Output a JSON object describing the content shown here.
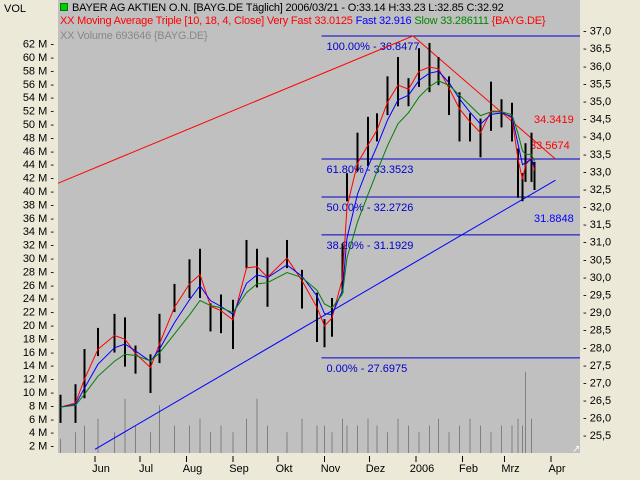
{
  "window": {
    "vol_label": "VOL"
  },
  "legend": {
    "instrument": "BAYER AG AKTIEN O.N. [BAYG.DE  Täglich] 2006/03/21 - O:33.14 H:33.23 L:32.85 C:32.92",
    "ma_prefix": "XX Moving Average Triple [10, 18, 4, Close] Very Fast 33.0125",
    "ma_fast": "Fast 32.916",
    "ma_slow": "Slow 33.286111",
    "ma_suffix": "{BAYG.DE}",
    "volume": "XX Volume 693646 {BAYG.DE}"
  },
  "colors": {
    "plot_bg": "#c0c0c0",
    "very_fast": "#ff0000",
    "fast": "#0000ff",
    "slow": "#008000",
    "fib": "#0000cc",
    "trend_red": "#ff0000",
    "trend_blue": "#0000ff",
    "volume": "#808080",
    "bars": "#000000"
  },
  "chart_data": {
    "type": "line",
    "price_axis": {
      "ylim": [
        25.5,
        37.0
      ],
      "ticks": [
        "25,5",
        "26,0",
        "26,5",
        "27,0",
        "27,5",
        "28,0",
        "28,5",
        "29,0",
        "29,5",
        "30,0",
        "30,5",
        "31,0",
        "31,5",
        "32,0",
        "32,5",
        "33,0",
        "33,5",
        "34,0",
        "34,5",
        "35,0",
        "35,5",
        "36,0",
        "36,5",
        "37,0"
      ]
    },
    "volume_axis": {
      "ticks": [
        "2 M",
        "4 M",
        "6 M",
        "8 M",
        "10 M",
        "12 M",
        "14 M",
        "16 M",
        "18 M",
        "20 M",
        "22 M",
        "24 M",
        "26 M",
        "28 M",
        "30 M",
        "32 M",
        "34 M",
        "36 M",
        "38 M",
        "40 M",
        "42 M",
        "44 M",
        "46 M",
        "48 M",
        "50 M",
        "52 M",
        "54 M",
        "56 M",
        "58 M",
        "60 M",
        "62 M"
      ]
    },
    "x_ticks": [
      {
        "label": "Jun",
        "date": "2005-06-01"
      },
      {
        "label": "Jul",
        "date": "2005-07-01"
      },
      {
        "label": "Aug",
        "date": "2005-08-01"
      },
      {
        "label": "Sep",
        "date": "2005-09-01"
      },
      {
        "label": "Okt",
        "date": "2005-10-01"
      },
      {
        "label": "Nov",
        "date": "2005-11-01"
      },
      {
        "label": "Dez",
        "date": "2005-12-01"
      },
      {
        "label": "2006",
        "date": "2006-01-01"
      },
      {
        "label": "Feb",
        "date": "2006-02-01"
      },
      {
        "label": "Mrz",
        "date": "2006-03-01"
      },
      {
        "label": "Apr",
        "date": "2006-04-01"
      }
    ],
    "close": [
      [
        "2005-05-09",
        26.3
      ],
      [
        "2005-05-19",
        26.45
      ],
      [
        "2005-05-25",
        27.3
      ],
      [
        "2005-06-03",
        28.2
      ],
      [
        "2005-06-14",
        28.45
      ],
      [
        "2005-06-21",
        28.2
      ],
      [
        "2005-06-28",
        27.7
      ],
      [
        "2005-07-08",
        27.3
      ],
      [
        "2005-07-14",
        28.3
      ],
      [
        "2005-07-24",
        29.45
      ],
      [
        "2005-08-03",
        30.0
      ],
      [
        "2005-08-10",
        30.15
      ],
      [
        "2005-08-17",
        28.9
      ],
      [
        "2005-08-24",
        29.0
      ],
      [
        "2005-09-01",
        28.7
      ],
      [
        "2005-09-10",
        30.7
      ],
      [
        "2005-09-17",
        30.3
      ],
      [
        "2005-09-24",
        29.9
      ],
      [
        "2005-10-07",
        30.7
      ],
      [
        "2005-10-17",
        29.7
      ],
      [
        "2005-10-27",
        28.9
      ],
      [
        "2005-11-01",
        28.45
      ],
      [
        "2005-11-06",
        28.9
      ],
      [
        "2005-11-13",
        30.3
      ],
      [
        "2005-11-16",
        32.6
      ],
      [
        "2005-11-23",
        33.6
      ],
      [
        "2005-11-30",
        33.9
      ],
      [
        "2005-12-06",
        34.3
      ],
      [
        "2005-12-13",
        35.2
      ],
      [
        "2005-12-20",
        35.6
      ],
      [
        "2005-12-27",
        35.3
      ],
      [
        "2006-01-03",
        36.0
      ],
      [
        "2006-01-10",
        36.0
      ],
      [
        "2006-01-16",
        35.9
      ],
      [
        "2006-01-23",
        35.2
      ],
      [
        "2006-01-30",
        34.6
      ],
      [
        "2006-02-06",
        34.3
      ],
      [
        "2006-02-13",
        34.0
      ],
      [
        "2006-02-20",
        34.9
      ],
      [
        "2006-02-27",
        34.7
      ],
      [
        "2006-03-06",
        34.45
      ],
      [
        "2006-03-10",
        33.0
      ],
      [
        "2006-03-13",
        32.6
      ],
      [
        "2006-03-15",
        33.3
      ],
      [
        "2006-03-19",
        33.45
      ],
      [
        "2006-03-21",
        32.92
      ]
    ],
    "volume_m": [
      3,
      4,
      5,
      6,
      4,
      9,
      5,
      4,
      8,
      5,
      5,
      6,
      4,
      5,
      4,
      6,
      9,
      5,
      4,
      6,
      5,
      5,
      4,
      6,
      5,
      5,
      6,
      5,
      4,
      6,
      5,
      4,
      5,
      6,
      4,
      5,
      6,
      5,
      4,
      5,
      5,
      6,
      5,
      13,
      6,
      0.7
    ],
    "fibonacci": [
      {
        "label": "100.00% - 36.8477",
        "value": 36.8477
      },
      {
        "label": "61.80% - 33.3523",
        "value": 33.3523
      },
      {
        "label": "50.00% - 32.2726",
        "value": 32.2726
      },
      {
        "label": "38.20% - 31.1929",
        "value": 31.1929
      },
      {
        "label": "0.00% - 27.6975",
        "value": 27.6975
      }
    ],
    "fib_start": "2005-10-30",
    "trendlines": [
      {
        "color": "red",
        "from": [
          "2005-05-01",
          32.55
        ],
        "to": [
          "2005-12-30",
          36.85
        ]
      },
      {
        "color": "red",
        "from": [
          "2005-12-30",
          36.85
        ],
        "to": [
          "2006-04-04",
          33.35
        ],
        "labels": [
          "34.3419",
          "33.5674"
        ]
      },
      {
        "color": "blue",
        "from": [
          "2005-06-01",
          25.1
        ],
        "to": [
          "2006-04-04",
          32.75
        ],
        "labels": [
          "31.8848"
        ]
      }
    ]
  }
}
